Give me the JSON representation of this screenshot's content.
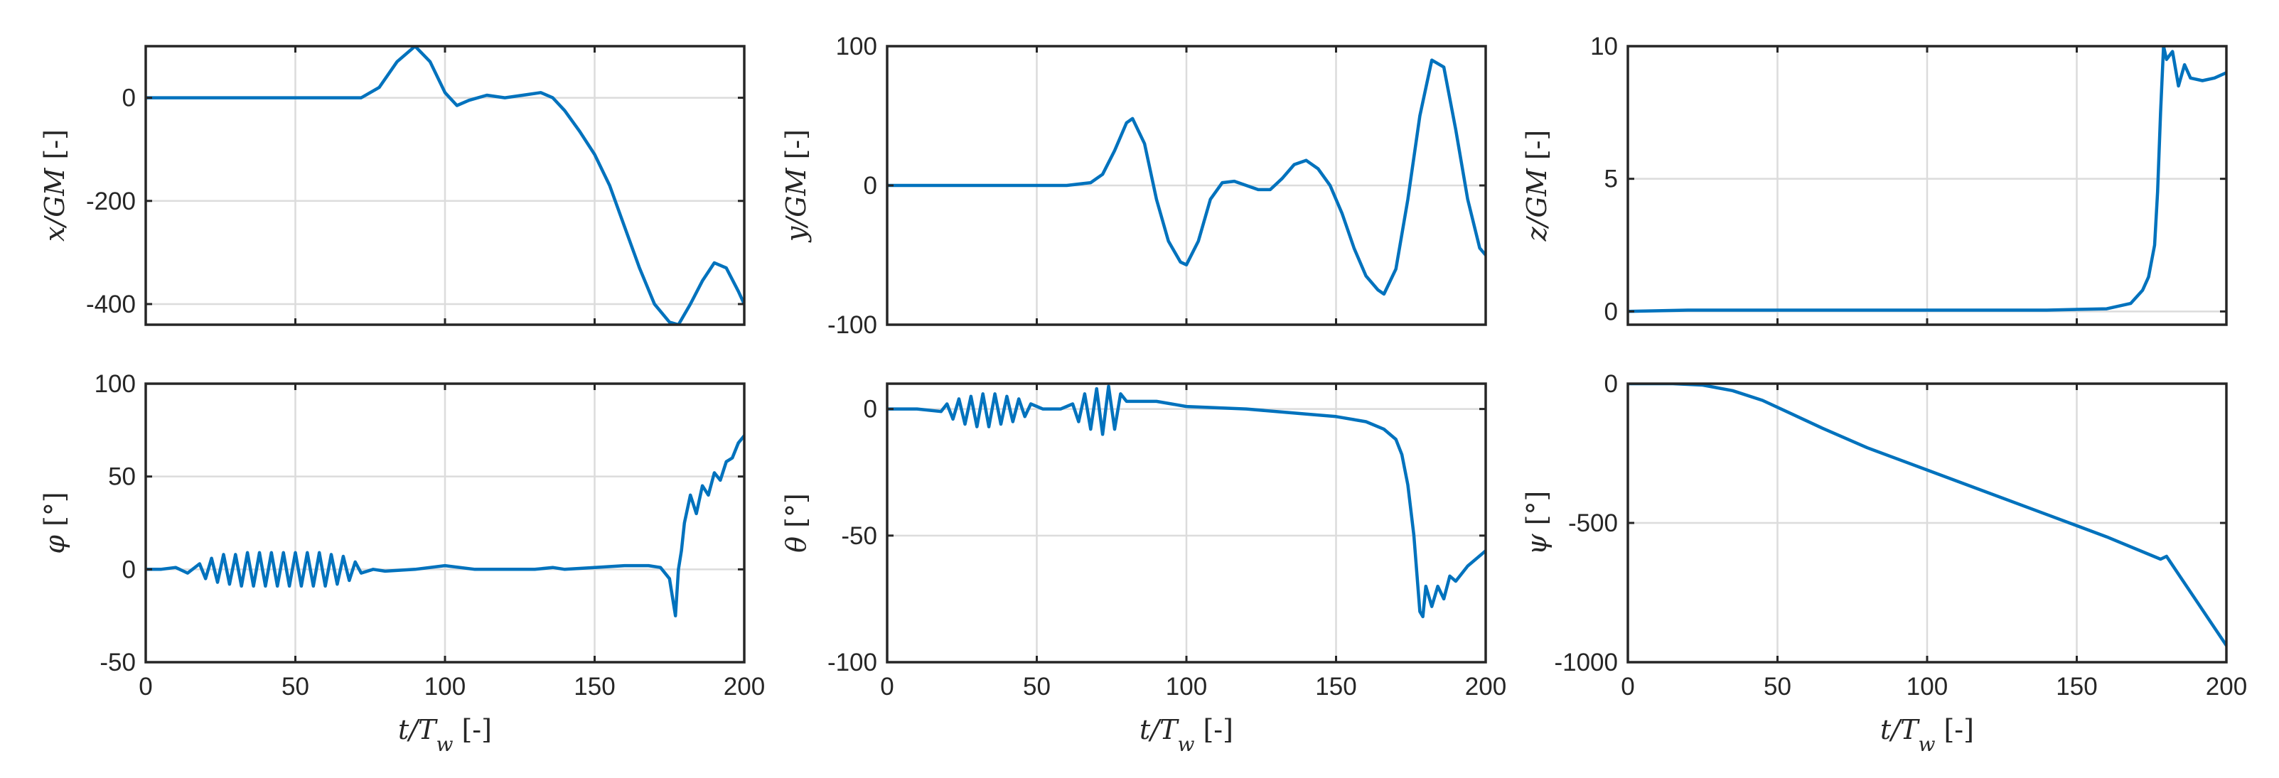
{
  "colors": {
    "series": "#0072BD",
    "axis": "#262626",
    "grid": "#dcdcdc"
  },
  "chart_data": [
    {
      "id": "x",
      "type": "line",
      "title": "",
      "xlabel": "",
      "ylabel": "x/GM [-]",
      "xlim": [
        0,
        200
      ],
      "ylim": [
        -440,
        100
      ],
      "xticks": [
        0,
        50,
        100,
        150,
        200
      ],
      "yticks": [
        -400,
        -200,
        0
      ],
      "show_xticklabels": false,
      "grid": true,
      "series": [
        {
          "x": [
            0,
            60,
            72,
            78,
            84,
            90,
            95,
            100,
            104,
            108,
            114,
            120,
            126,
            132,
            136,
            140,
            145,
            150,
            155,
            160,
            165,
            170,
            175,
            178,
            182,
            186,
            190,
            194,
            198,
            200
          ],
          "y": [
            0,
            0,
            0,
            20,
            70,
            100,
            70,
            10,
            -15,
            -5,
            5,
            0,
            5,
            10,
            0,
            -25,
            -65,
            -110,
            -170,
            -250,
            -330,
            -400,
            -435,
            -440,
            -400,
            -355,
            -320,
            -330,
            -375,
            -400
          ]
        }
      ]
    },
    {
      "id": "y",
      "type": "line",
      "title": "",
      "xlabel": "",
      "ylabel": "y/GM [-]",
      "xlim": [
        0,
        200
      ],
      "ylim": [
        -100,
        100
      ],
      "xticks": [
        0,
        50,
        100,
        150,
        200
      ],
      "yticks": [
        -100,
        0,
        100
      ],
      "show_xticklabels": false,
      "grid": true,
      "series": [
        {
          "x": [
            0,
            60,
            68,
            72,
            76,
            80,
            82,
            86,
            90,
            94,
            98,
            100,
            104,
            108,
            112,
            116,
            120,
            124,
            128,
            132,
            136,
            140,
            144,
            148,
            152,
            156,
            160,
            164,
            166,
            170,
            174,
            178,
            182,
            186,
            190,
            194,
            198,
            200
          ],
          "y": [
            0,
            0,
            2,
            8,
            25,
            45,
            48,
            30,
            -10,
            -40,
            -55,
            -57,
            -40,
            -10,
            2,
            3,
            0,
            -3,
            -3,
            5,
            15,
            18,
            12,
            0,
            -20,
            -45,
            -65,
            -75,
            -78,
            -60,
            -10,
            50,
            90,
            85,
            40,
            -10,
            -45,
            -50
          ]
        }
      ]
    },
    {
      "id": "z",
      "type": "line",
      "title": "",
      "xlabel": "",
      "ylabel": "z/GM [-]",
      "xlim": [
        0,
        200
      ],
      "ylim": [
        -0.5,
        10
      ],
      "xticks": [
        0,
        50,
        100,
        150,
        200
      ],
      "yticks": [
        0,
        5,
        10
      ],
      "show_xticklabels": false,
      "grid": true,
      "series": [
        {
          "x": [
            0,
            20,
            40,
            60,
            80,
            100,
            120,
            140,
            160,
            168,
            172,
            174,
            176,
            177,
            178,
            179,
            180,
            182,
            184,
            186,
            188,
            192,
            196,
            200
          ],
          "y": [
            0,
            0.05,
            0.05,
            0.05,
            0.05,
            0.05,
            0.05,
            0.05,
            0.1,
            0.3,
            0.8,
            1.3,
            2.5,
            4.5,
            7.5,
            10,
            9.5,
            9.8,
            8.5,
            9.3,
            8.8,
            8.7,
            8.8,
            9.0
          ]
        }
      ]
    },
    {
      "id": "phi",
      "type": "line",
      "title": "",
      "xlabel": "t/Tw [-]",
      "ylabel": "φ [°]",
      "xlim": [
        0,
        200
      ],
      "ylim": [
        -50,
        100
      ],
      "xticks": [
        0,
        50,
        100,
        150,
        200
      ],
      "yticks": [
        -50,
        0,
        50,
        100
      ],
      "show_xticklabels": true,
      "grid": true,
      "series": [
        {
          "x": [
            0,
            5,
            10,
            14,
            18,
            20,
            22,
            24,
            26,
            28,
            30,
            32,
            34,
            36,
            38,
            40,
            42,
            44,
            46,
            48,
            50,
            52,
            54,
            56,
            58,
            60,
            62,
            64,
            66,
            68,
            70,
            72,
            76,
            80,
            90,
            100,
            110,
            120,
            130,
            136,
            140,
            150,
            160,
            168,
            172,
            175,
            176,
            177,
            178,
            179,
            180,
            182,
            184,
            186,
            188,
            190,
            192,
            194,
            196,
            198,
            200
          ],
          "y": [
            0,
            0,
            1,
            -2,
            3,
            -5,
            6,
            -7,
            8,
            -8,
            8,
            -9,
            9,
            -9,
            9,
            -9,
            9,
            -9,
            9,
            -9,
            9,
            -9,
            9,
            -9,
            9,
            -9,
            8,
            -8,
            7,
            -6,
            4,
            -2,
            0,
            -1,
            0,
            2,
            0,
            0,
            0,
            1,
            0,
            1,
            2,
            2,
            1,
            -5,
            -15,
            -25,
            0,
            10,
            25,
            40,
            30,
            45,
            40,
            52,
            48,
            58,
            60,
            68,
            72
          ]
        }
      ]
    },
    {
      "id": "theta",
      "type": "line",
      "title": "",
      "xlabel": "t/Tw [-]",
      "ylabel": "θ [°]",
      "xlim": [
        0,
        200
      ],
      "ylim": [
        -100,
        10
      ],
      "xticks": [
        0,
        50,
        100,
        150,
        200
      ],
      "yticks": [
        -100,
        -50,
        0
      ],
      "show_xticklabels": true,
      "grid": true,
      "series": [
        {
          "x": [
            0,
            10,
            18,
            20,
            22,
            24,
            26,
            28,
            30,
            32,
            34,
            36,
            38,
            40,
            42,
            44,
            46,
            48,
            52,
            58,
            62,
            64,
            66,
            68,
            70,
            72,
            74,
            76,
            78,
            80,
            84,
            90,
            100,
            120,
            140,
            150,
            160,
            166,
            170,
            172,
            174,
            176,
            177,
            178,
            179,
            180,
            182,
            184,
            186,
            188,
            190,
            194,
            198,
            200
          ],
          "y": [
            0,
            0,
            -1,
            2,
            -4,
            4,
            -6,
            5,
            -7,
            6,
            -7,
            6,
            -6,
            5,
            -5,
            4,
            -3,
            2,
            0,
            0,
            2,
            -5,
            6,
            -8,
            8,
            -10,
            9,
            -8,
            6,
            3,
            3,
            3,
            1,
            0,
            -2,
            -3,
            -5,
            -8,
            -12,
            -18,
            -30,
            -50,
            -65,
            -80,
            -82,
            -70,
            -78,
            -70,
            -75,
            -66,
            -68,
            -62,
            -58,
            -56
          ]
        }
      ]
    },
    {
      "id": "psi",
      "type": "line",
      "title": "",
      "xlabel": "t/Tw [-]",
      "ylabel": "ψ [°]",
      "xlim": [
        0,
        200
      ],
      "ylim": [
        -1000,
        0
      ],
      "xticks": [
        0,
        50,
        100,
        150,
        200
      ],
      "yticks": [
        -1000,
        -500,
        0
      ],
      "show_xticklabels": true,
      "grid": true,
      "series": [
        {
          "x": [
            0,
            15,
            25,
            35,
            45,
            55,
            65,
            80,
            100,
            120,
            140,
            160,
            178,
            180,
            185,
            190,
            195,
            200
          ],
          "y": [
            0,
            0,
            -5,
            -25,
            -60,
            -110,
            -160,
            -230,
            -310,
            -390,
            -470,
            -550,
            -630,
            -620,
            -700,
            -780,
            -860,
            -940
          ]
        }
      ]
    }
  ]
}
